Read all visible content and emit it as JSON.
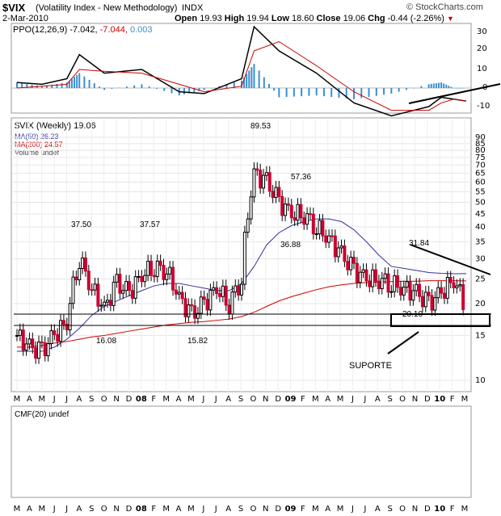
{
  "header": {
    "symbol": "$VIX",
    "name": "(Volatility Index - New Methodology)",
    "exchange": "INDX",
    "date": "2-Mar-2010",
    "watermark": "© StockCharts.com",
    "ohlc": {
      "open_label": "Open",
      "open": "19.93",
      "high_label": "High",
      "high": "19.94",
      "low_label": "Low",
      "low": "18.60",
      "close_label": "Close",
      "close": "19.06",
      "chg_label": "Chg",
      "chg": "-0.44 (-2.26%)"
    }
  },
  "ppo_panel": {
    "label": "PPO(12,26,9)",
    "value": "-7.042,",
    "signal": "-7.044,",
    "hist": "0.003",
    "yticks": [
      "30",
      "20",
      "10",
      "0",
      "-10"
    ]
  },
  "price_panel": {
    "legend": [
      "$VIX (Weekly) 19.06",
      "MA(50) 26.23",
      "MA(200) 24.57",
      "Volume undef"
    ],
    "yticks": [
      "90",
      "85",
      "80",
      "75",
      "70",
      "65",
      "60",
      "55",
      "50",
      "45",
      "40",
      "35",
      "30",
      "25",
      "20",
      "15",
      "10"
    ],
    "annotations": [
      "89.53",
      "57.36",
      "37.50",
      "37.57",
      "36.88",
      "31.84",
      "16.08",
      "15.82",
      "20.10",
      "SUPORTE"
    ]
  },
  "cmf_panel": {
    "label": "CMF(20) undef"
  },
  "xaxis": [
    "M",
    "A",
    "M",
    "J",
    "J",
    "A",
    "S",
    "O",
    "N",
    "D",
    "08",
    "F",
    "M",
    "A",
    "M",
    "J",
    "J",
    "A",
    "S",
    "O",
    "N",
    "D",
    "09",
    "F",
    "M",
    "A",
    "M",
    "J",
    "J",
    "A",
    "S",
    "O",
    "N",
    "D",
    "10",
    "F",
    "M"
  ],
  "colors": {
    "price": "#cc0033",
    "ma50": "#333399",
    "ma200": "#cc0000",
    "ppo_hist": "#3a8fd0",
    "signal": "#cc0000"
  },
  "chart_data": {
    "type": "line",
    "title": "$VIX (Volatility Index - New Methodology)",
    "ylabel": "",
    "yscale": "log",
    "ylim": [
      9.5,
      92
    ],
    "x": [
      "2007-03",
      "2007-04",
      "2007-05",
      "2007-06",
      "2007-07",
      "2007-08",
      "2007-09",
      "2007-10",
      "2007-11",
      "2007-12",
      "2008-01",
      "2008-02",
      "2008-03",
      "2008-04",
      "2008-05",
      "2008-06",
      "2008-07",
      "2008-08",
      "2008-09",
      "2008-10",
      "2008-11",
      "2008-12",
      "2009-01",
      "2009-02",
      "2009-03",
      "2009-04",
      "2009-05",
      "2009-06",
      "2009-07",
      "2009-08",
      "2009-09",
      "2009-10",
      "2009-11",
      "2009-12",
      "2010-01",
      "2010-02",
      "2010-03"
    ],
    "series": [
      {
        "name": "$VIX (Weekly)",
        "values": [
          15,
          13.5,
          13,
          15,
          17,
          30,
          23,
          19,
          24,
          22,
          26,
          28,
          27,
          21,
          18,
          20,
          23,
          20,
          25,
          65,
          60,
          50,
          45,
          45,
          40,
          36,
          31,
          27,
          25,
          25,
          24,
          23,
          22,
          20,
          22,
          25,
          19.06
        ]
      },
      {
        "name": "MA(50)",
        "values": [
          13,
          13,
          13,
          13.5,
          14.5,
          16,
          18,
          19.5,
          20.5,
          21.5,
          22.5,
          23.5,
          24,
          24,
          23.5,
          23,
          22.5,
          22.5,
          24,
          28,
          34,
          38,
          40.5,
          42,
          43,
          43,
          42,
          39,
          35,
          31,
          28,
          27.5,
          27,
          26.5,
          26.3,
          26.2,
          26.23
        ]
      },
      {
        "name": "MA(200)",
        "values": [
          13.5,
          13.5,
          13.7,
          14,
          14.2,
          14.5,
          14.8,
          15,
          15.3,
          15.6,
          15.9,
          16.2,
          16.5,
          16.7,
          16.9,
          17,
          17.2,
          17.4,
          17.8,
          18.5,
          19.5,
          20.5,
          21.3,
          22,
          22.7,
          23.3,
          23.7,
          24,
          24.2,
          24.3,
          24.4,
          24.5,
          24.5,
          24.6,
          24.6,
          24.6,
          24.57
        ]
      }
    ],
    "ppo": {
      "x": [
        "2007-03",
        "2007-05",
        "2007-07",
        "2007-08",
        "2007-10",
        "2008-01",
        "2008-04",
        "2008-06",
        "2008-09",
        "2008-10",
        "2008-12",
        "2009-03",
        "2009-06",
        "2009-09",
        "2009-12",
        "2010-01",
        "2010-02",
        "2010-03"
      ],
      "ppo": [
        3,
        2,
        5,
        18,
        8,
        10,
        -2,
        -3,
        5,
        33,
        20,
        8,
        -8,
        -15,
        -10,
        -5,
        -6,
        -7.04
      ],
      "signal": [
        0,
        1,
        2,
        10,
        9,
        8,
        2,
        -2,
        1,
        20,
        25,
        12,
        -2,
        -12,
        -12,
        -8,
        -6,
        -7.04
      ]
    }
  }
}
